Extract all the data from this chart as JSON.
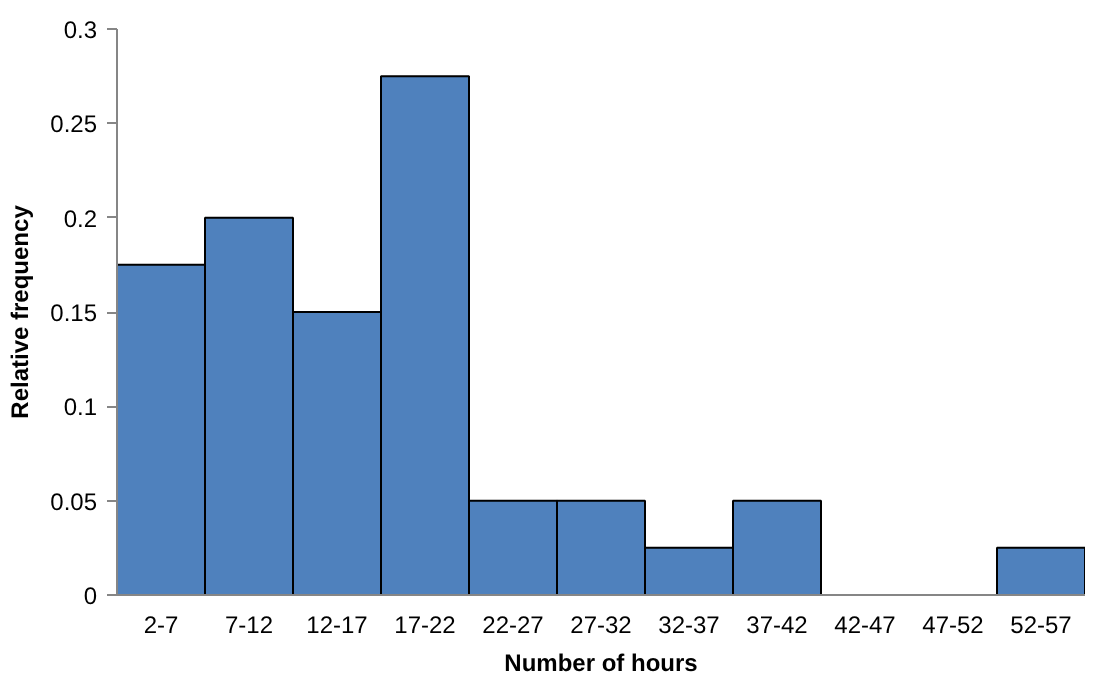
{
  "chart_data": {
    "type": "bar",
    "categories": [
      "2-7",
      "7-12",
      "12-17",
      "17-22",
      "22-27",
      "27-32",
      "32-37",
      "37-42",
      "42-47",
      "47-52",
      "52-57"
    ],
    "values": [
      0.175,
      0.2,
      0.15,
      0.275,
      0.05,
      0.05,
      0.025,
      0.05,
      0,
      0,
      0.025
    ],
    "color": "#4f81bd",
    "xlabel": "Number of hours",
    "ylabel": "Relative frequency",
    "ylim": [
      0,
      0.3
    ],
    "yticks": [
      0,
      0.05,
      0.1,
      0.15,
      0.2,
      0.25,
      0.3
    ],
    "grid": false
  }
}
